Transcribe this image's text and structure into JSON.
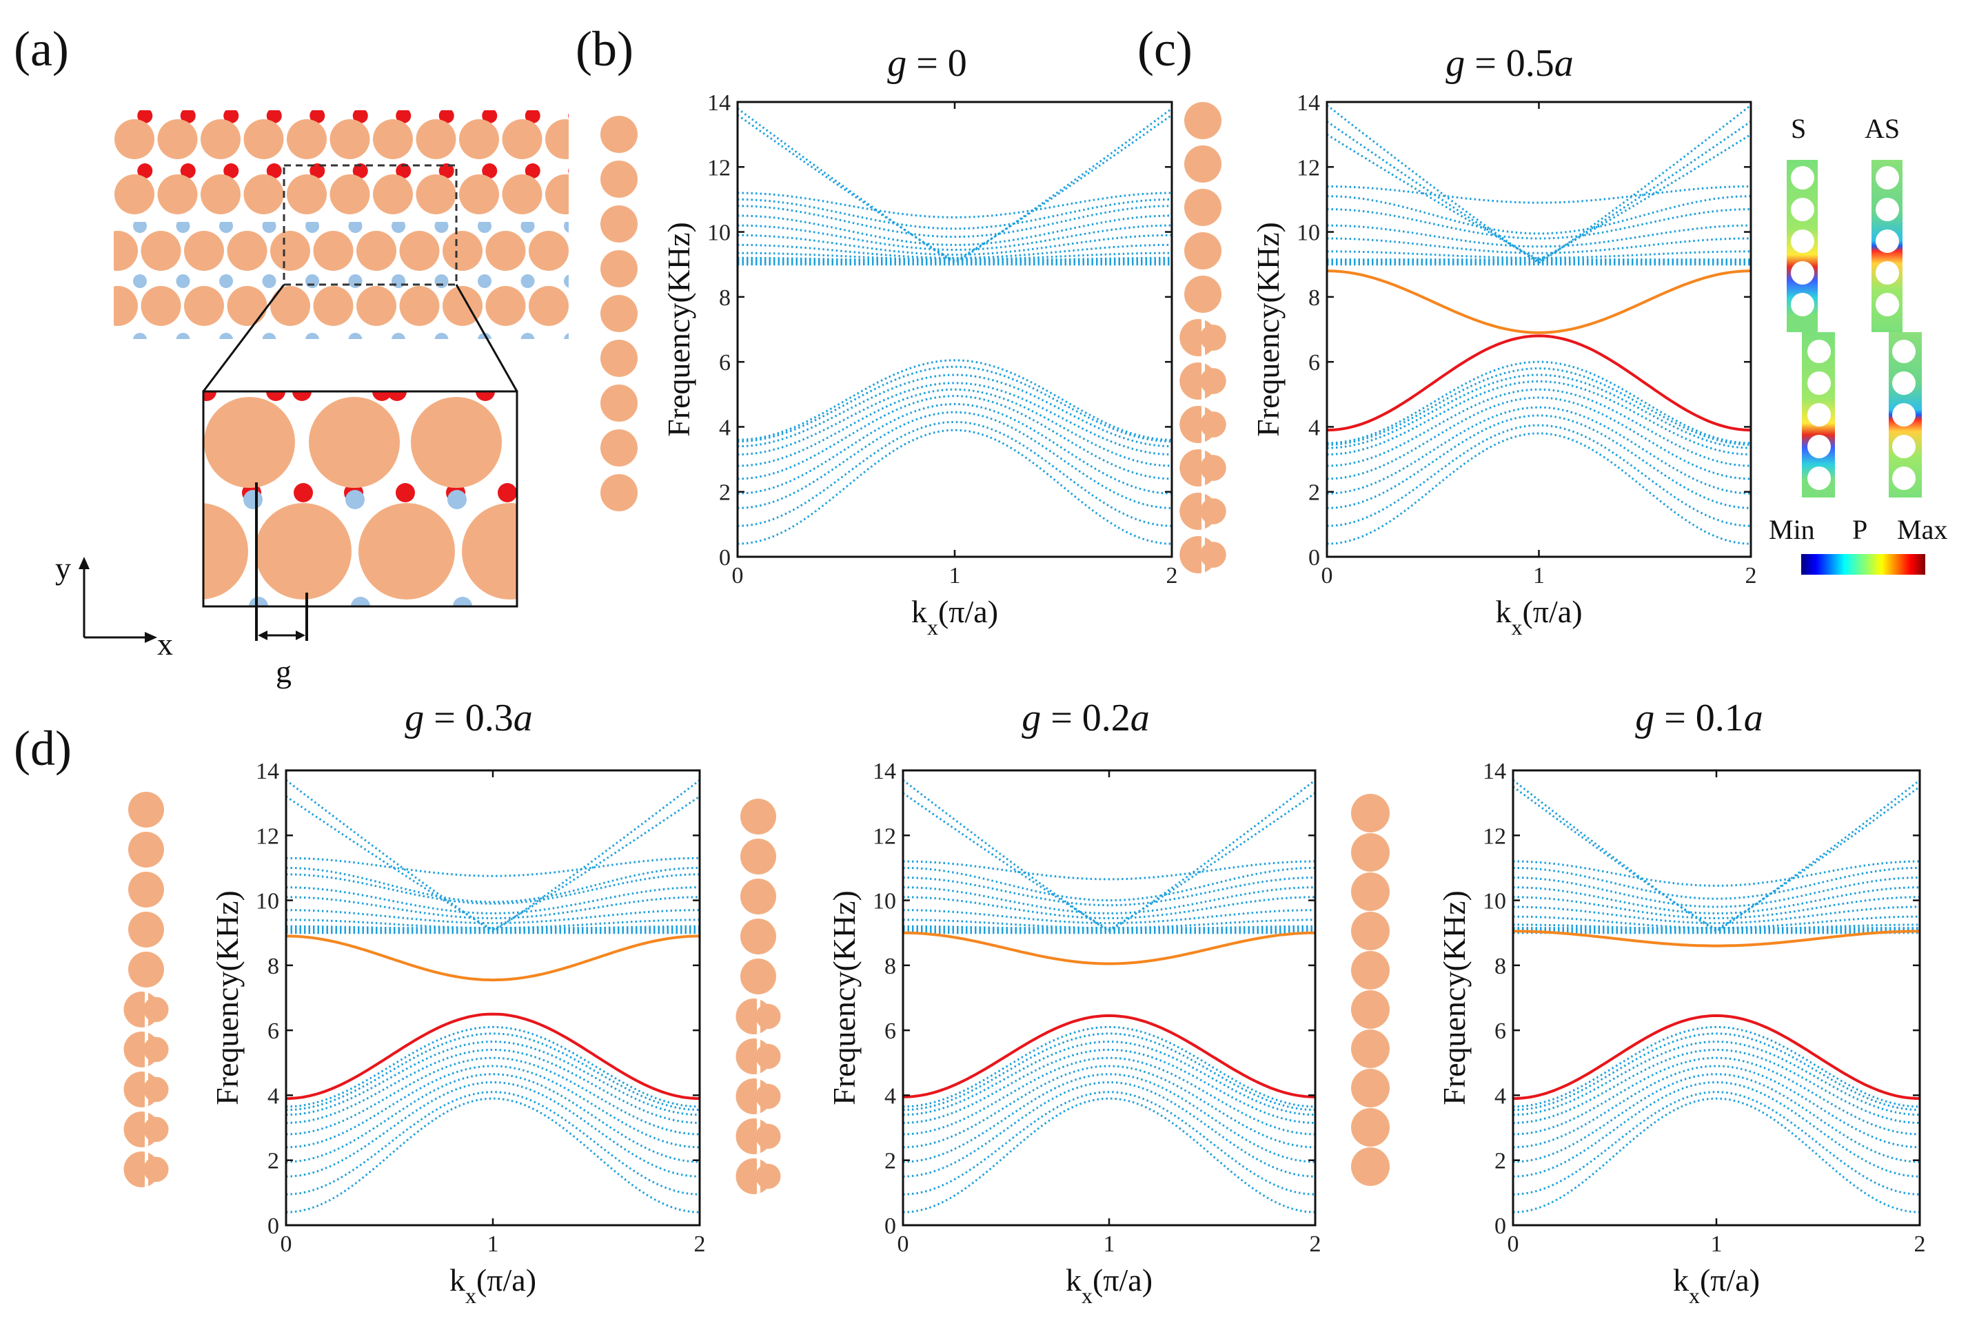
{
  "colors": {
    "bulk_band": "#1ea0dc",
    "edge_lower": "#e8161b",
    "edge_upper": "#f5861f",
    "rod": "#f2ae82",
    "red_dot": "#e8161b",
    "blue_dot": "#9dc3e6",
    "gray_box": "#f5f5f5"
  },
  "panel_labels": {
    "a": "(a)",
    "b": "(b)",
    "c": "(c)",
    "d": "(d)"
  },
  "schematic": {
    "axis_x": "x",
    "axis_y": "y",
    "gap_label": "g"
  },
  "legend": {
    "sym": "S",
    "antisym": "AS",
    "min": "Min",
    "field": "P",
    "max": "Max"
  },
  "chart_data": [
    {
      "id": "b",
      "type": "line",
      "title": {
        "lhs": "g",
        "rhs": "= 0",
        "rhs_italic": ""
      },
      "xlabel": "k",
      "xlabel_sub": "x",
      "xlabel_tail": "(π/a)",
      "ylabel": "Frequency(KHz)",
      "xlim": [
        0,
        2
      ],
      "ylim": [
        0,
        14
      ],
      "xticks": [
        "0",
        "1",
        "2"
      ],
      "yticks": [
        "0",
        "2",
        "4",
        "6",
        "8",
        "10",
        "12",
        "14"
      ],
      "bulk_lower": [
        [
          0.4,
          3.9
        ],
        [
          0.95,
          4.15
        ],
        [
          1.5,
          4.45
        ],
        [
          1.95,
          4.7
        ],
        [
          2.4,
          4.95
        ],
        [
          2.8,
          5.15
        ],
        [
          3.15,
          5.35
        ],
        [
          3.4,
          5.6
        ],
        [
          3.55,
          5.85
        ],
        [
          3.6,
          6.05
        ]
      ],
      "bulk_upper": [
        [
          13.8,
          9.05
        ],
        [
          13.6,
          9.1
        ],
        [
          11.2,
          10.45
        ],
        [
          11.0,
          10.1
        ],
        [
          10.8,
          9.85
        ],
        [
          10.5,
          9.6
        ],
        [
          10.2,
          9.45
        ],
        [
          9.9,
          9.3
        ],
        [
          9.6,
          9.2
        ],
        [
          9.35,
          9.15
        ],
        [
          9.2,
          9.1
        ],
        [
          9.1,
          9.08
        ],
        [
          9.02,
          9.02
        ]
      ],
      "edge_lower": null,
      "edge_upper": null,
      "edge_lower_label": "",
      "edge_upper_label": ""
    },
    {
      "id": "c",
      "type": "line",
      "title": {
        "lhs": "g",
        "rhs": "= 0.5",
        "rhs_italic": "a"
      },
      "xlabel": "k",
      "xlabel_sub": "x",
      "xlabel_tail": "(π/a)",
      "ylabel": "Frequency(KHz)",
      "xlim": [
        0,
        2
      ],
      "ylim": [
        0,
        14
      ],
      "xticks": [
        "0",
        "1",
        "2"
      ],
      "yticks": [
        "0",
        "2",
        "4",
        "6",
        "8",
        "10",
        "12",
        "14"
      ],
      "bulk_lower": [
        [
          0.4,
          3.8
        ],
        [
          0.95,
          4.05
        ],
        [
          1.5,
          4.35
        ],
        [
          1.95,
          4.6
        ],
        [
          2.4,
          4.9
        ],
        [
          2.8,
          5.15
        ],
        [
          3.15,
          5.4
        ],
        [
          3.35,
          5.6
        ],
        [
          3.45,
          5.8
        ],
        [
          3.5,
          6.0
        ]
      ],
      "bulk_upper": [
        [
          13.9,
          9.05
        ],
        [
          13.4,
          9.1
        ],
        [
          13.0,
          9.15
        ],
        [
          11.4,
          10.9
        ],
        [
          11.1,
          9.95
        ],
        [
          10.7,
          9.8
        ],
        [
          10.2,
          9.55
        ],
        [
          9.8,
          9.35
        ],
        [
          9.4,
          9.2
        ],
        [
          9.1,
          9.05
        ],
        [
          9.05,
          9.02
        ]
      ],
      "edge_lower": [
        3.9,
        6.8
      ],
      "edge_upper": [
        8.8,
        6.9
      ],
      "edge_lower_label": "S",
      "edge_upper_label": "AS"
    },
    {
      "id": "d1",
      "type": "line",
      "title": {
        "lhs": "g",
        "rhs": "= 0.3",
        "rhs_italic": "a"
      },
      "xlabel": "k",
      "xlabel_sub": "x",
      "xlabel_tail": "(π/a)",
      "ylabel": "Frequency(KHz)",
      "xlim": [
        0,
        2
      ],
      "ylim": [
        0,
        14
      ],
      "xticks": [
        "0",
        "1",
        "2"
      ],
      "yticks": [
        "0",
        "2",
        "4",
        "6",
        "8",
        "10",
        "12",
        "14"
      ],
      "bulk_lower": [
        [
          0.4,
          3.9
        ],
        [
          0.95,
          4.1
        ],
        [
          1.5,
          4.4
        ],
        [
          1.95,
          4.65
        ],
        [
          2.4,
          4.9
        ],
        [
          2.8,
          5.15
        ],
        [
          3.15,
          5.4
        ],
        [
          3.4,
          5.65
        ],
        [
          3.55,
          5.9
        ],
        [
          3.65,
          6.1
        ]
      ],
      "bulk_upper": [
        [
          13.7,
          9.05
        ],
        [
          13.2,
          9.1
        ],
        [
          11.3,
          10.75
        ],
        [
          11.0,
          9.95
        ],
        [
          10.8,
          9.9
        ],
        [
          10.4,
          9.6
        ],
        [
          10.1,
          9.45
        ],
        [
          9.7,
          9.3
        ],
        [
          9.4,
          9.15
        ],
        [
          9.2,
          9.1
        ],
        [
          9.1,
          9.05
        ]
      ],
      "edge_lower": [
        3.9,
        6.5
      ],
      "edge_upper": [
        8.9,
        7.55
      ],
      "edge_lower_label": "",
      "edge_upper_label": ""
    },
    {
      "id": "d2",
      "type": "line",
      "title": {
        "lhs": "g",
        "rhs": "= 0.2",
        "rhs_italic": "a"
      },
      "xlabel": "k",
      "xlabel_sub": "x",
      "xlabel_tail": "(π/a)",
      "ylabel": "Frequency(KHz)",
      "xlim": [
        0,
        2
      ],
      "ylim": [
        0,
        14
      ],
      "xticks": [
        "0",
        "1",
        "2"
      ],
      "yticks": [
        "0",
        "2",
        "4",
        "6",
        "8",
        "10",
        "12",
        "14"
      ],
      "bulk_lower": [
        [
          0.4,
          3.9
        ],
        [
          0.95,
          4.1
        ],
        [
          1.5,
          4.4
        ],
        [
          1.95,
          4.65
        ],
        [
          2.4,
          4.9
        ],
        [
          2.8,
          5.15
        ],
        [
          3.15,
          5.4
        ],
        [
          3.4,
          5.65
        ],
        [
          3.55,
          5.9
        ],
        [
          3.65,
          6.1
        ]
      ],
      "bulk_upper": [
        [
          13.7,
          9.05
        ],
        [
          13.3,
          9.1
        ],
        [
          11.2,
          10.65
        ],
        [
          11.0,
          10.0
        ],
        [
          10.7,
          9.85
        ],
        [
          10.4,
          9.6
        ],
        [
          10.1,
          9.45
        ],
        [
          9.7,
          9.3
        ],
        [
          9.4,
          9.15
        ],
        [
          9.2,
          9.1
        ],
        [
          9.1,
          9.05
        ]
      ],
      "edge_lower": [
        3.95,
        6.45
      ],
      "edge_upper": [
        9.0,
        8.05
      ],
      "edge_lower_label": "",
      "edge_upper_label": ""
    },
    {
      "id": "d3",
      "type": "line",
      "title": {
        "lhs": "g",
        "rhs": "= 0.1",
        "rhs_italic": "a"
      },
      "xlabel": "k",
      "xlabel_sub": "x",
      "xlabel_tail": "(π/a)",
      "ylabel": "Frequency(KHz)",
      "xlim": [
        0,
        2
      ],
      "ylim": [
        0,
        14
      ],
      "xticks": [
        "0",
        "1",
        "2"
      ],
      "yticks": [
        "0",
        "2",
        "4",
        "6",
        "8",
        "10",
        "12",
        "14"
      ],
      "bulk_lower": [
        [
          0.4,
          3.9
        ],
        [
          0.95,
          4.1
        ],
        [
          1.5,
          4.4
        ],
        [
          1.95,
          4.65
        ],
        [
          2.4,
          4.9
        ],
        [
          2.8,
          5.15
        ],
        [
          3.15,
          5.4
        ],
        [
          3.4,
          5.65
        ],
        [
          3.55,
          5.9
        ],
        [
          3.65,
          6.1
        ]
      ],
      "bulk_upper": [
        [
          13.7,
          9.05
        ],
        [
          13.5,
          9.1
        ],
        [
          11.2,
          10.45
        ],
        [
          11.0,
          10.05
        ],
        [
          10.7,
          9.8
        ],
        [
          10.4,
          9.6
        ],
        [
          10.1,
          9.45
        ],
        [
          9.8,
          9.3
        ],
        [
          9.5,
          9.15
        ],
        [
          9.25,
          9.1
        ],
        [
          9.1,
          9.05
        ]
      ],
      "edge_lower": [
        3.9,
        6.45
      ],
      "edge_upper": [
        9.05,
        8.6
      ],
      "edge_lower_label": "",
      "edge_upper_label": ""
    }
  ]
}
